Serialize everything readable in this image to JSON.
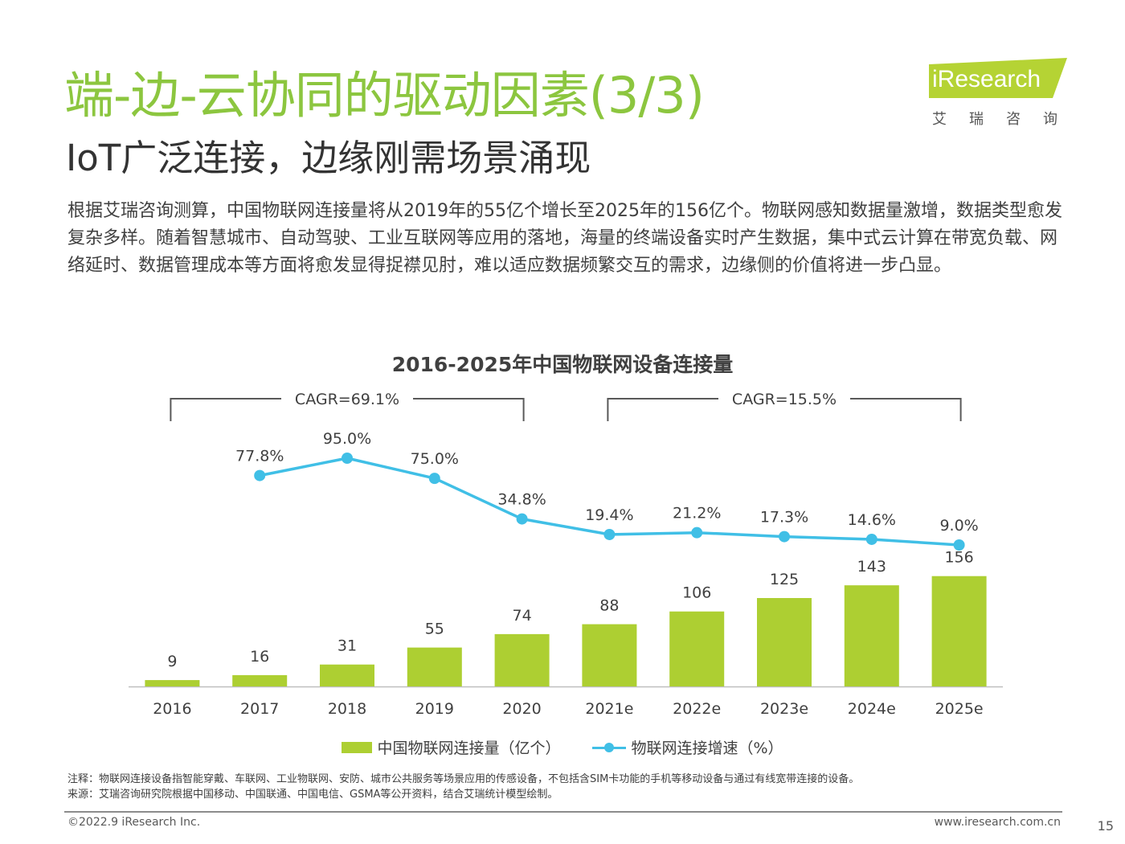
{
  "header": {
    "title": "端-边-云协同的驱动因素(3/3)",
    "subtitle": "IoT广泛连接，边缘刚需场景涌现",
    "intro": "根据艾瑞咨询测算，中国物联网连接量将从2019年的55亿个增长至2025年的156亿个。物联网感知数据量激增，数据类型愈发复杂多样。随着智慧城市、自动驾驶、工业互联网等应用的落地，海量的终端设备实时产生数据，集中式云计算在带宽负载、网络延时、数据管理成本等方面将愈发显得捉襟见肘，难以适应数据频繁交互的需求，边缘侧的价值将进一步凸显。"
  },
  "logo": {
    "name": "iResearch",
    "cn": "艾瑞咨询"
  },
  "chart_data": {
    "type": "bar",
    "title": "2016-2025年中国物联网设备连接量",
    "categories": [
      "2016",
      "2017",
      "2018",
      "2019",
      "2020",
      "2021e",
      "2022e",
      "2023e",
      "2024e",
      "2025e"
    ],
    "series": [
      {
        "name": "中国物联网连接量（亿个）",
        "type": "bar",
        "values": [
          9,
          16,
          31,
          55,
          74,
          88,
          106,
          125,
          143,
          156
        ],
        "labels": [
          "9",
          "16",
          "31",
          "55",
          "74",
          "88",
          "106",
          "125",
          "143",
          "156"
        ]
      },
      {
        "name": "物联网连接增速（%）",
        "type": "line",
        "values": [
          null,
          77.8,
          95.0,
          75.0,
          34.8,
          19.4,
          21.2,
          17.3,
          14.6,
          9.0
        ],
        "labels": [
          null,
          "77.8%",
          "95.0%",
          "75.0%",
          "34.8%",
          "19.4%",
          "21.2%",
          "17.3%",
          "14.6%",
          "9.0%"
        ]
      }
    ],
    "annotations": [
      {
        "text": "CAGR=69.1%",
        "from": "2016",
        "to": "2020"
      },
      {
        "text": "CAGR=15.5%",
        "from": "2021e",
        "to": "2025e"
      }
    ],
    "legend_position": "bottom",
    "grid": false,
    "colors": {
      "bar": "#adcf32",
      "line": "#40bfe6"
    }
  },
  "notes": {
    "note": "注释：物联网连接设备指智能穿戴、车联网、工业物联网、安防、城市公共服务等场景应用的传感设备，不包括含SIM卡功能的手机等移动设备与通过有线宽带连接的设备。",
    "source": "来源：艾瑞咨询研究院根据中国移动、中国联通、中国电信、GSMA等公开资料，结合艾瑞统计模型绘制。"
  },
  "footer": {
    "copyright": "©2022.9 iResearch Inc.",
    "website": "www.iresearch.com.cn",
    "page": "15"
  },
  "colors": {
    "title": "#8cc63f",
    "logo_bg": "#b5d334"
  }
}
